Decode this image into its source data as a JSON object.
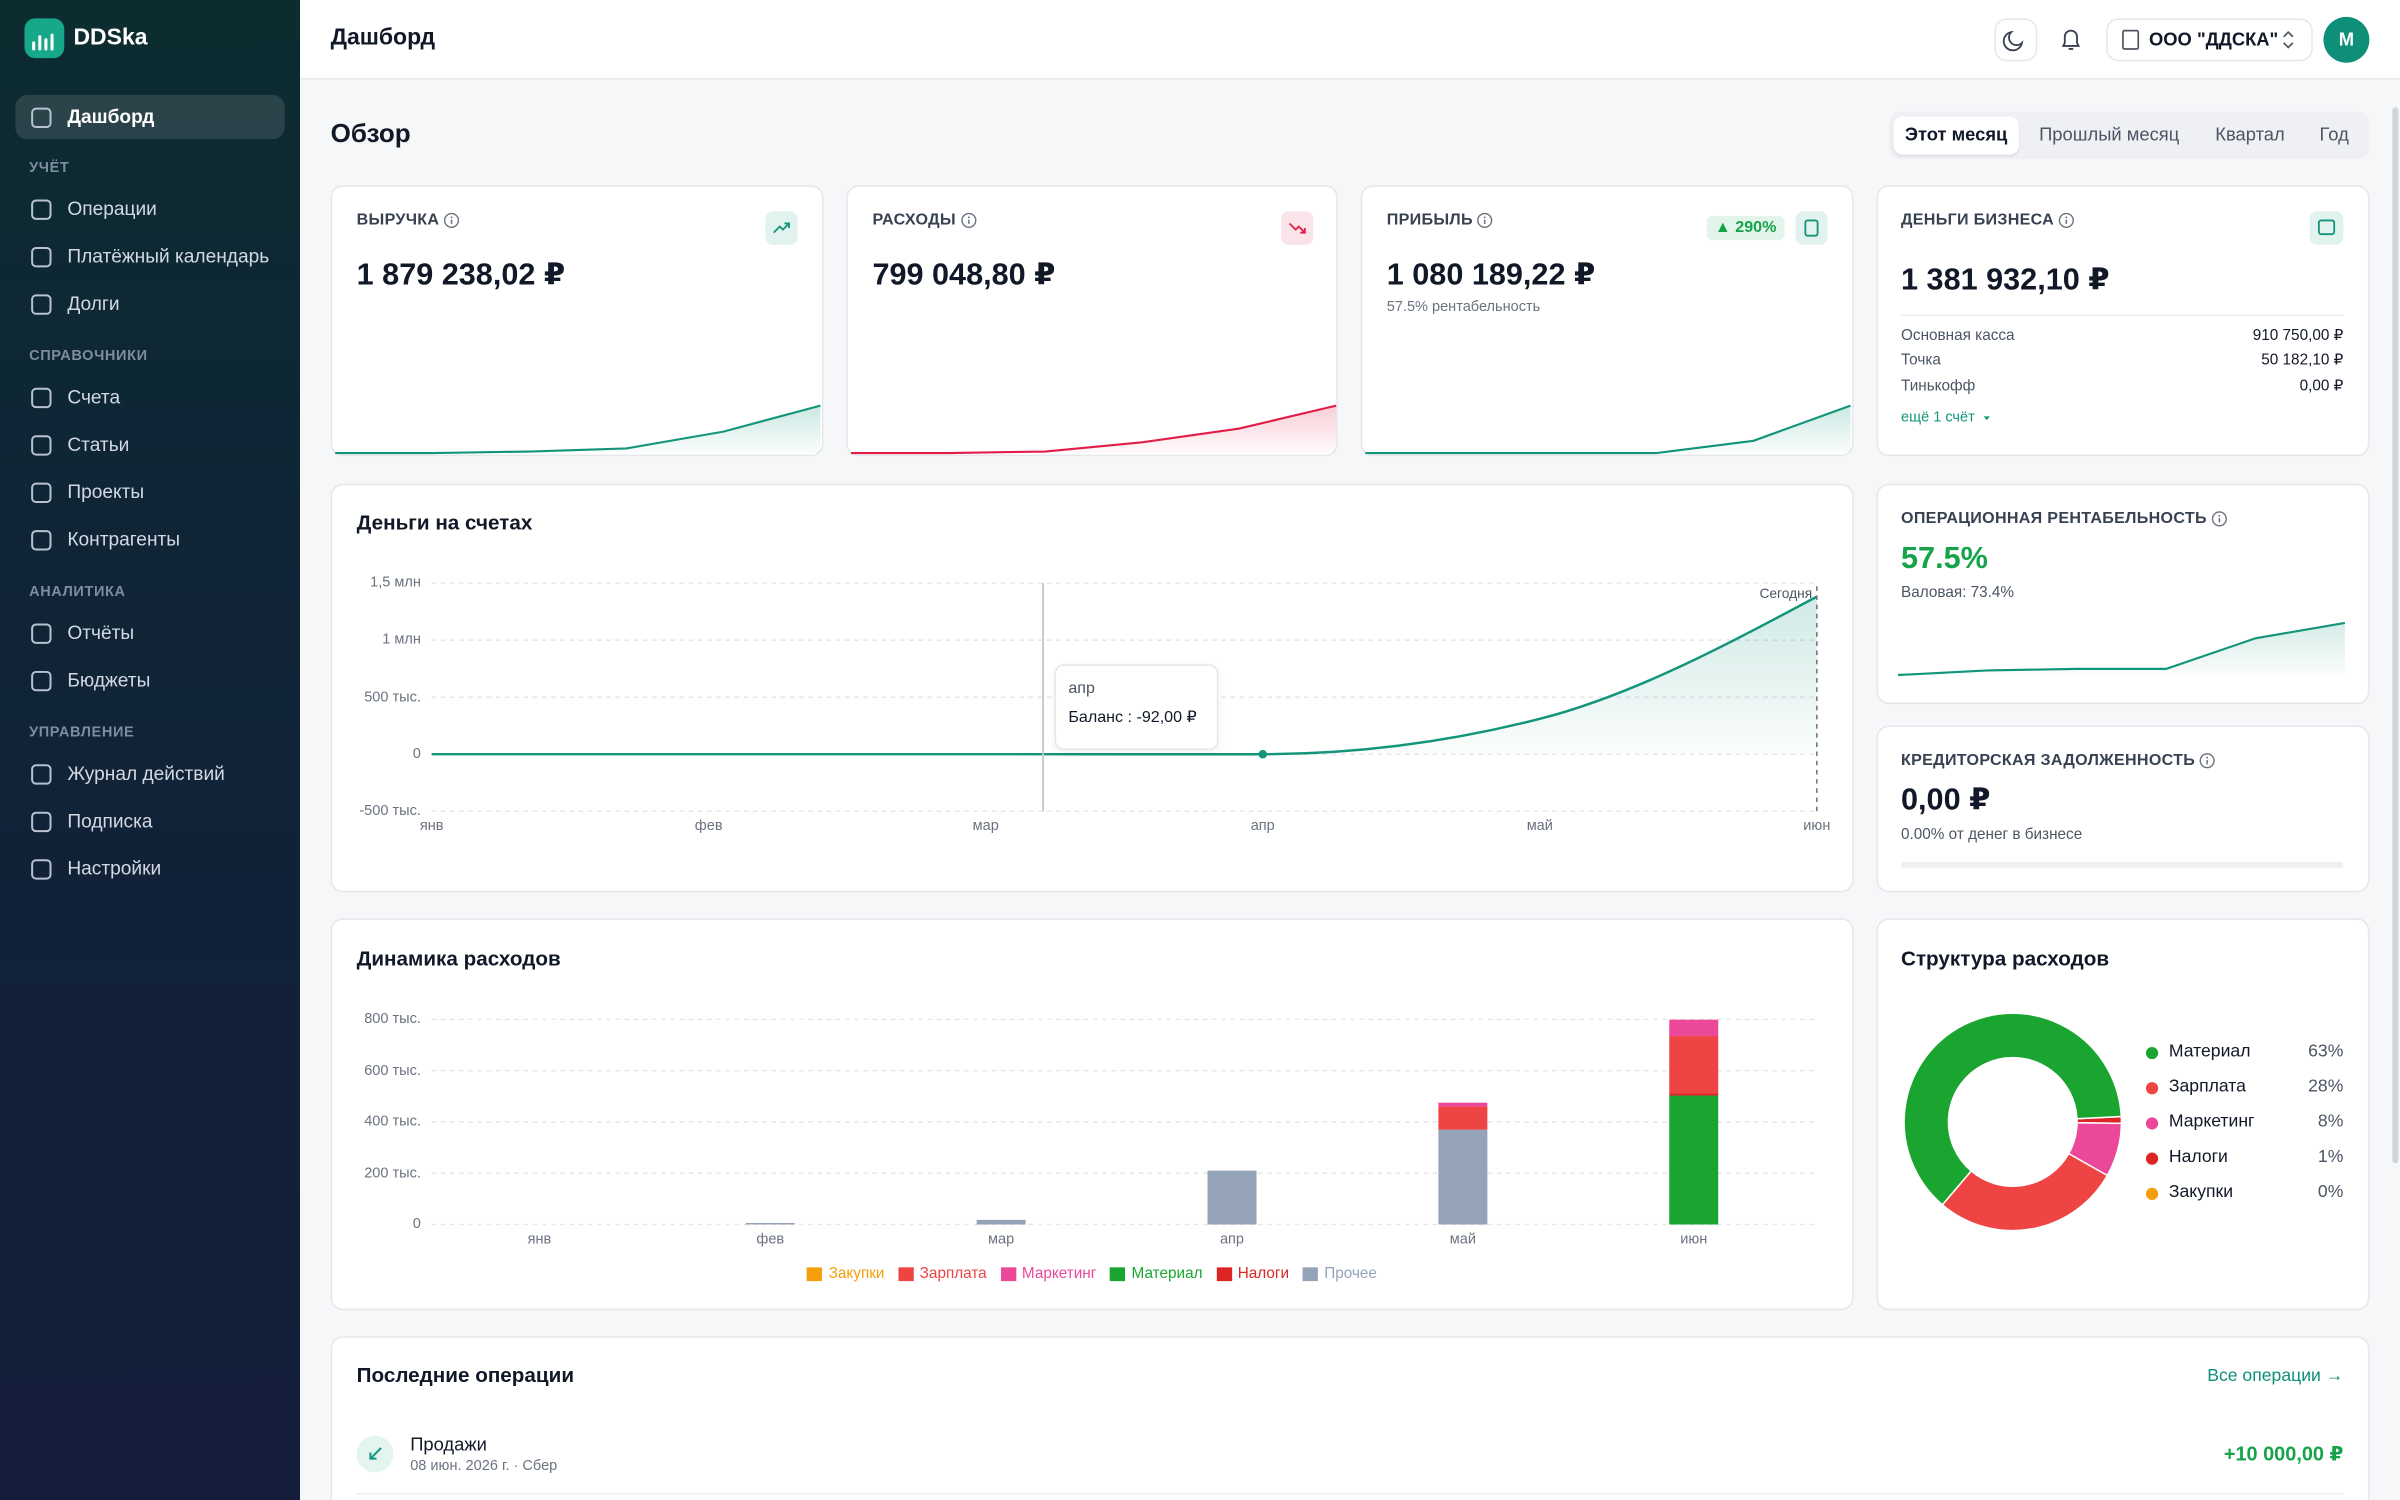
{
  "sidebar": {
    "brand": "DDSka",
    "top_item": "Дашборд",
    "sections": [
      {
        "title": "УЧЁТ",
        "items": [
          "Операции",
          "Платёжный календарь",
          "Долги"
        ]
      },
      {
        "title": "СПРАВОЧНИКИ",
        "items": [
          "Счета",
          "Статьи",
          "Проекты",
          "Контрагенты"
        ]
      },
      {
        "title": "АНАЛИТИКА",
        "items": [
          "Отчёты",
          "Бюджеты"
        ]
      },
      {
        "title": "УПРАВЛЕНИЕ",
        "items": [
          "Журнал действий",
          "Подписка",
          "Настройки"
        ]
      }
    ]
  },
  "header": {
    "title": "Дашборд",
    "company": "ООО \"ДДСКА\"",
    "avatar": "M"
  },
  "overview": {
    "title": "Обзор",
    "periods": [
      "Этот месяц",
      "Прошлый месяц",
      "Квартал",
      "Год"
    ],
    "active_period": 0
  },
  "kpis": [
    {
      "label": "ВЫРУЧКА",
      "value": "1 879 238,02 ₽",
      "color": "#13957b",
      "spark": [
        0,
        0,
        1,
        3,
        14,
        31
      ]
    },
    {
      "label": "РАСХОДЫ",
      "value": "799 048,80 ₽",
      "color": "#e11d48",
      "spark": [
        0,
        0,
        1,
        7,
        16,
        31
      ]
    },
    {
      "label": "ПРИБЫЛЬ",
      "value": "1 080 189,22 ₽",
      "badge": "▲ 290%",
      "note": "57.5% рентабельность",
      "color": "#13957b",
      "spark": [
        0,
        0,
        0,
        0,
        8,
        31
      ]
    }
  ],
  "business_money": {
    "label": "ДЕНЬГИ БИЗНЕСА",
    "value": "1 381 932,10 ₽",
    "accounts": [
      [
        "Основная касса",
        "910 750,00 ₽"
      ],
      [
        "Точка",
        "50 182,10 ₽"
      ],
      [
        "Тинькофф",
        "0,00 ₽"
      ]
    ],
    "more": "ещё 1 счёт"
  },
  "rentability": {
    "label": "ОПЕРАЦИОННАЯ РЕНТАБЕЛЬНОСТЬ",
    "value": "57.5%",
    "note": "Валовая: 73.4%",
    "color": "#13957b",
    "spark": [
      0,
      3,
      4,
      4,
      24,
      34
    ]
  },
  "payables": {
    "label": "КРЕДИТОРСКАЯ ЗАДОЛЖЕННОСТЬ",
    "value": "0,00 ₽",
    "note": "0.00% от денег в бизнесе",
    "progress": 0
  },
  "balance_chart": {
    "type": "line",
    "title": "Деньги на счетах",
    "categories": [
      "янв",
      "фев",
      "мар",
      "апр",
      "май",
      "июн"
    ],
    "values": [
      0,
      0,
      0,
      -92,
      310000,
      1381932
    ],
    "color": "#13957b",
    "ylim": [
      -500000,
      1500000
    ],
    "yticks": [
      {
        "value": -500000,
        "label": "-500 тыс."
      },
      0,
      {
        "value": 500000,
        "label": "500 тыс."
      },
      {
        "value": 1000000,
        "label": "1 млн"
      },
      {
        "value": 1500000,
        "label": "1,5 млн"
      }
    ],
    "grid": true,
    "today_label": "Сегодня",
    "tooltip": {
      "title": "апр",
      "text": "Баланс : -92,00 ₽"
    }
  },
  "expense_chart": {
    "type": "bar",
    "stacked": true,
    "title": "Динамика расходов",
    "categories": [
      "янв",
      "фев",
      "мар",
      "апр",
      "май",
      "июн"
    ],
    "series": [
      {
        "name": "Закупки",
        "color": "#f59e0b",
        "values": [
          0,
          0,
          0,
          0,
          0,
          0
        ]
      },
      {
        "name": "Зарплата",
        "color": "#ef4444",
        "values": [
          0,
          0,
          0,
          0,
          90000,
          224000
        ]
      },
      {
        "name": "Маркетинг",
        "color": "#ec4899",
        "values": [
          0,
          0,
          0,
          0,
          15000,
          64000
        ]
      },
      {
        "name": "Материал",
        "color": "#19a530",
        "values": [
          0,
          0,
          0,
          0,
          0,
          503000
        ]
      },
      {
        "name": "Налоги",
        "color": "#dc2626",
        "values": [
          0,
          0,
          0,
          0,
          0,
          8000
        ]
      },
      {
        "name": "Прочее",
        "color": "#94a3b8",
        "values": [
          0,
          6000,
          18000,
          210000,
          370000,
          0
        ]
      }
    ],
    "ylim": [
      0,
      800000
    ],
    "yticks": [
      0,
      {
        "value": 200000,
        "label": "200 тыс."
      },
      {
        "value": 400000,
        "label": "400 тыс."
      },
      {
        "value": 600000,
        "label": "600 тыс."
      },
      {
        "value": 800000,
        "label": "800 тыс."
      }
    ],
    "grid": true,
    "legend": "bottom"
  },
  "expense_structure": {
    "type": "pie",
    "donut": true,
    "title": "Структура расходов",
    "categories": [
      "Материал",
      "Зарплата",
      "Маркетинг",
      "Налоги",
      "Закупки"
    ],
    "values": [
      63,
      28,
      8,
      1,
      0
    ],
    "value_labels": [
      "63%",
      "28%",
      "8%",
      "1%",
      "0%"
    ],
    "colors": [
      "#19a530",
      "#ef4444",
      "#ec4899",
      "#dc2626",
      "#f59e0b"
    ],
    "legend": "right"
  },
  "recent_operations": {
    "title": "Последние операции",
    "link": "Все операции →",
    "rows": [
      {
        "name": "Продажи",
        "meta": "08 июн. 2026 г. · Сбер",
        "amount": "+10 000,00 ₽"
      }
    ]
  }
}
